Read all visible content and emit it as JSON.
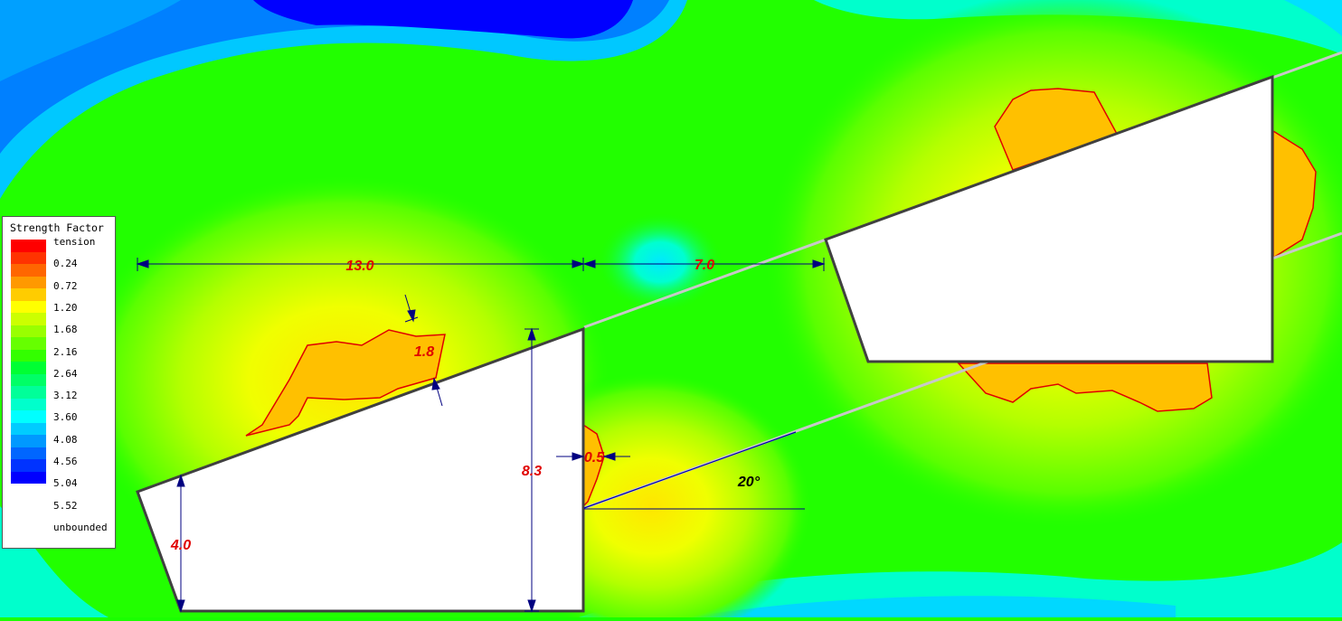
{
  "legend": {
    "title": "Strength Factor",
    "labels": [
      "tension",
      "0.24",
      "0.72",
      "1.20",
      "1.68",
      "2.16",
      "2.64",
      "3.12",
      "3.60",
      "4.08",
      "4.56",
      "5.04",
      "5.52",
      "unbounded"
    ],
    "colors": [
      "#ff0000",
      "#ff3300",
      "#ff6600",
      "#ff9900",
      "#ffcc00",
      "#ffff00",
      "#ccff00",
      "#99ff00",
      "#66ff00",
      "#33ff00",
      "#00ff33",
      "#00ff66",
      "#00ff99",
      "#00ffcc",
      "#00ffff",
      "#00ccff",
      "#0099ff",
      "#0066ff",
      "#0033ff",
      "#0000ff"
    ]
  },
  "dimensions": {
    "width_left": "13.0",
    "spacing": "7.0",
    "height_right": "8.3",
    "height_left": "4.0",
    "thickness_top": "1.8",
    "offset": "0.5",
    "angle": "20°"
  }
}
